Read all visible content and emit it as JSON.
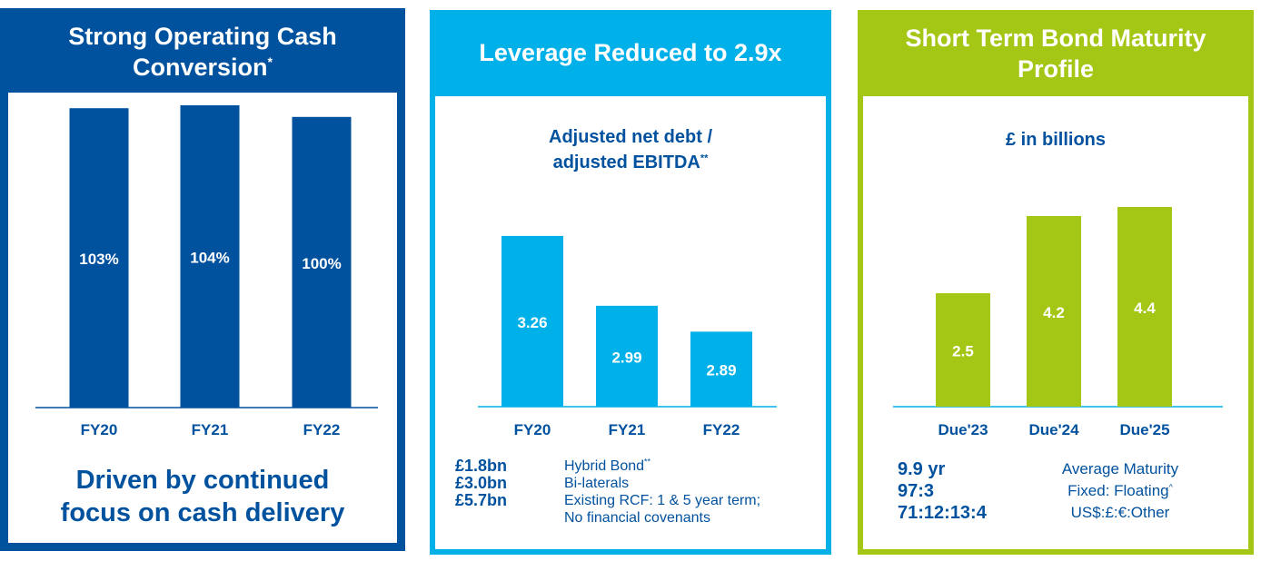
{
  "colors": {
    "navy": "#00519e",
    "cyan": "#00b0e8",
    "lime": "#a4c614",
    "white": "#ffffff"
  },
  "panel1": {
    "title": "Strong Operating Cash Conversion",
    "title_mark": "*",
    "footer_line1": "Driven by continued",
    "footer_line2": "focus on cash delivery"
  },
  "panel2": {
    "title": "Leverage Reduced to 2.9x",
    "subtitle_line1": "Adjusted net debt /",
    "subtitle_line2": "adjusted EBITDA",
    "subtitle_mark": "**",
    "notes": [
      {
        "key": "£1.8bn",
        "text": "Hybrid Bond",
        "mark": "**"
      },
      {
        "key": "£3.0bn",
        "text": "Bi-laterals",
        "mark": ""
      },
      {
        "key": "£5.7bn",
        "text": "Existing RCF: 1 & 5 year term;",
        "mark": ""
      },
      {
        "key": "",
        "text": "No financial covenants",
        "mark": ""
      }
    ]
  },
  "panel3": {
    "title": "Short Term Bond Maturity Profile",
    "subtitle": "£ in billions",
    "stats": [
      {
        "key": "9.9 yr",
        "text": "Average Maturity",
        "mark": ""
      },
      {
        "key": "97:3",
        "text": "Fixed: Floating",
        "mark": "^"
      },
      {
        "key": "71:12:13:4",
        "text": "US$:£:€:Other",
        "mark": ""
      }
    ]
  },
  "chart_data": [
    {
      "type": "bar",
      "title": "Strong Operating Cash Conversion*",
      "categories": [
        "FY20",
        "FY21",
        "FY22"
      ],
      "values": [
        103,
        104,
        100
      ],
      "labels": [
        "103%",
        "104%",
        "100%"
      ],
      "ylim": [
        0,
        104
      ],
      "xlabel": "",
      "ylabel": ""
    },
    {
      "type": "bar",
      "title": "Adjusted net debt / adjusted EBITDA**",
      "categories": [
        "FY20",
        "FY21",
        "FY22"
      ],
      "values": [
        3.26,
        2.99,
        2.89
      ],
      "labels": [
        "3.26",
        "2.99",
        "2.89"
      ],
      "ylim": [
        2.6,
        3.4
      ],
      "xlabel": "",
      "ylabel": ""
    },
    {
      "type": "bar",
      "title": "£ in billions",
      "categories": [
        "Due'23",
        "Due'24",
        "Due'25"
      ],
      "values": [
        2.5,
        4.2,
        4.4
      ],
      "labels": [
        "2.5",
        "4.2",
        "4.4"
      ],
      "ylim": [
        0,
        4.8
      ],
      "xlabel": "",
      "ylabel": ""
    }
  ]
}
